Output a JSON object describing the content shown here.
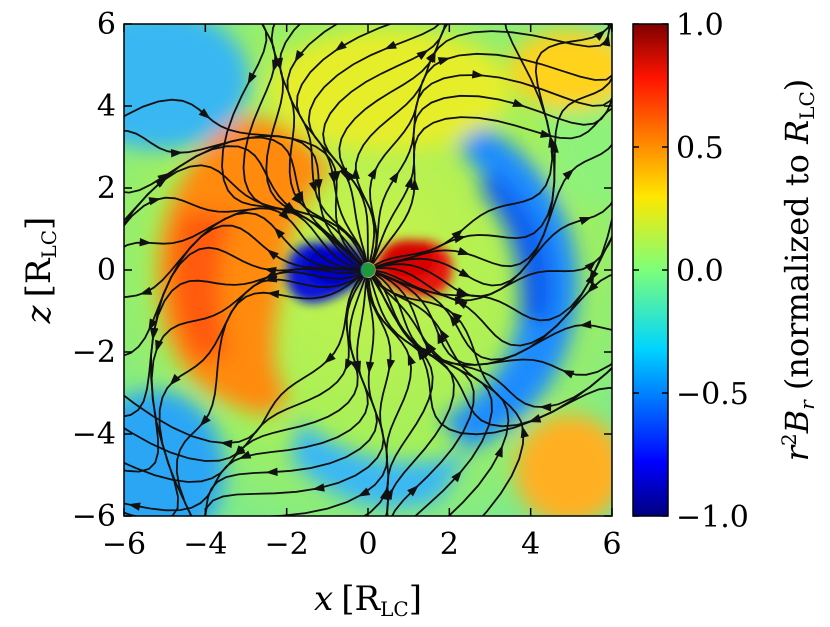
{
  "chart_data": {
    "type": "heatmap",
    "title": "",
    "xlabel_var": "x",
    "xlabel_unit": "[R",
    "xlabel_sub": "LC",
    "xlabel_close": "]",
    "ylabel_var": "z",
    "ylabel_unit": "[R",
    "ylabel_sub": "LC",
    "ylabel_close": "]",
    "xlim": [
      -6,
      6
    ],
    "ylim": [
      -6,
      6
    ],
    "x_ticks": [
      -6,
      -4,
      -2,
      0,
      2,
      4,
      6
    ],
    "y_ticks": [
      -6,
      -4,
      -2,
      0,
      2,
      4,
      6
    ],
    "x_tick_labels": [
      "−6",
      "−4",
      "−2",
      "0",
      "2",
      "4",
      "6"
    ],
    "y_tick_labels": [
      "−6",
      "−4",
      "−2",
      "0",
      "2",
      "4",
      "6"
    ],
    "colorbar": {
      "label_main": "r",
      "label_sup": "2",
      "label_var": "B",
      "label_sub": "r",
      "label_paren": "(normalized to ",
      "label_R": "R",
      "label_Rsub": "LC",
      "label_close": ")",
      "range": [
        -1.0,
        1.0
      ],
      "ticks": [
        1.0,
        0.5,
        0.0,
        -0.5,
        -1.0
      ],
      "tick_labels": [
        "1.0",
        "0.5",
        "0.0",
        "−0.5",
        "−1.0"
      ],
      "colormap": "jet"
    },
    "overlay": "magnetic field streamlines with arrows",
    "star_marker": {
      "x": 0,
      "y": 0,
      "color": "#1a9a3a"
    },
    "field_features": [
      {
        "name": "left-orange-arm",
        "value": 0.75
      },
      {
        "name": "right-blue-arm",
        "value": -0.75
      },
      {
        "name": "inner-red-lobe",
        "value": 1.0
      },
      {
        "name": "inner-blue-lobe",
        "value": -1.0
      }
    ]
  }
}
